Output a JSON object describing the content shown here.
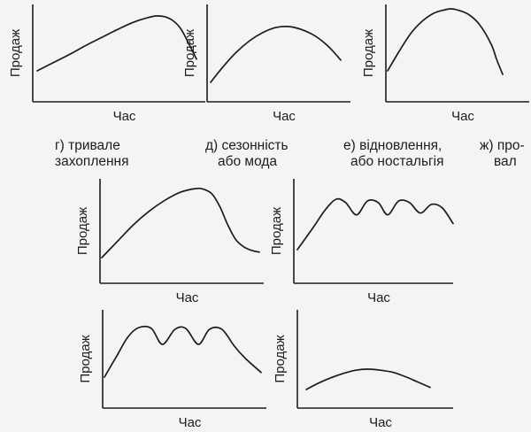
{
  "captions": [
    {
      "line1": "г) тривале",
      "line2": "захоплення"
    },
    {
      "line1": "д) сезонність",
      "line2": "або мода"
    },
    {
      "line1": "е) відновлення,",
      "line2": "або ностальгія"
    },
    {
      "line1": "ж) про-",
      "line2": "вал"
    }
  ],
  "chart_data": [
    {
      "type": "line",
      "xlabel": "Час",
      "ylabel": "Продаж",
      "shape": "long-rise-then-decline",
      "x": [
        0,
        0.1,
        0.2,
        0.3,
        0.4,
        0.5,
        0.6,
        0.7,
        0.75,
        0.8,
        0.85,
        0.9,
        0.95,
        1.0
      ],
      "y": [
        0.22,
        0.33,
        0.44,
        0.56,
        0.67,
        0.78,
        0.88,
        0.95,
        0.97,
        0.96,
        0.91,
        0.8,
        0.6,
        0.38
      ]
    },
    {
      "type": "line",
      "xlabel": "Час",
      "ylabel": "Продаж",
      "shape": "gentle-rise-then-decline",
      "x": [
        0,
        0.1,
        0.2,
        0.3,
        0.4,
        0.5,
        0.6,
        0.7,
        0.8,
        0.9,
        1.0
      ],
      "y": [
        0.2,
        0.36,
        0.5,
        0.61,
        0.69,
        0.74,
        0.75,
        0.72,
        0.66,
        0.56,
        0.42
      ]
    },
    {
      "type": "line",
      "xlabel": "Час",
      "ylabel": "Продаж",
      "shape": "fast-rise-sharp-drop",
      "x": [
        0,
        0.1,
        0.2,
        0.3,
        0.4,
        0.5,
        0.55,
        0.6,
        0.7,
        0.8,
        0.9,
        0.95,
        1.0
      ],
      "y": [
        0.3,
        0.52,
        0.72,
        0.86,
        0.95,
        0.99,
        1.0,
        0.99,
        0.94,
        0.82,
        0.6,
        0.42,
        0.26
      ]
    },
    {
      "type": "line",
      "xlabel": "Час",
      "ylabel": "Продаж",
      "shape": "rise-then-decline-to-plateau",
      "x": [
        0,
        0.1,
        0.2,
        0.3,
        0.4,
        0.5,
        0.6,
        0.65,
        0.7,
        0.75,
        0.8,
        0.85,
        0.9,
        0.95,
        1.0
      ],
      "y": [
        0.12,
        0.3,
        0.48,
        0.63,
        0.75,
        0.84,
        0.88,
        0.87,
        0.82,
        0.68,
        0.48,
        0.32,
        0.24,
        0.2,
        0.18
      ]
    },
    {
      "type": "line",
      "xlabel": "Час",
      "ylabel": "Продаж",
      "shape": "rise-then-repeated-waves",
      "x": [
        0,
        0.1,
        0.18,
        0.25,
        0.31,
        0.38,
        0.45,
        0.52,
        0.58,
        0.65,
        0.72,
        0.79,
        0.86,
        0.93,
        1.0
      ],
      "y": [
        0.2,
        0.45,
        0.66,
        0.78,
        0.74,
        0.6,
        0.76,
        0.74,
        0.6,
        0.76,
        0.74,
        0.62,
        0.72,
        0.68,
        0.5
      ]
    },
    {
      "type": "line",
      "xlabel": "Час",
      "ylabel": "Продаж",
      "shape": "rise-then-repeated-waves",
      "x": [
        0,
        0.08,
        0.15,
        0.22,
        0.3,
        0.37,
        0.45,
        0.52,
        0.6,
        0.67,
        0.75,
        0.83,
        0.9,
        1.0
      ],
      "y": [
        0.25,
        0.48,
        0.68,
        0.78,
        0.77,
        0.6,
        0.76,
        0.77,
        0.6,
        0.76,
        0.76,
        0.58,
        0.45,
        0.3
      ]
    },
    {
      "type": "line",
      "xlabel": "Час",
      "ylabel": "Продаж",
      "shape": "low-flat-arc",
      "x": [
        0,
        0.1,
        0.2,
        0.3,
        0.4,
        0.5,
        0.6,
        0.7,
        0.8,
        0.9,
        1.0
      ],
      "y": [
        0.18,
        0.24,
        0.29,
        0.33,
        0.36,
        0.37,
        0.36,
        0.34,
        0.3,
        0.25,
        0.2
      ]
    }
  ]
}
